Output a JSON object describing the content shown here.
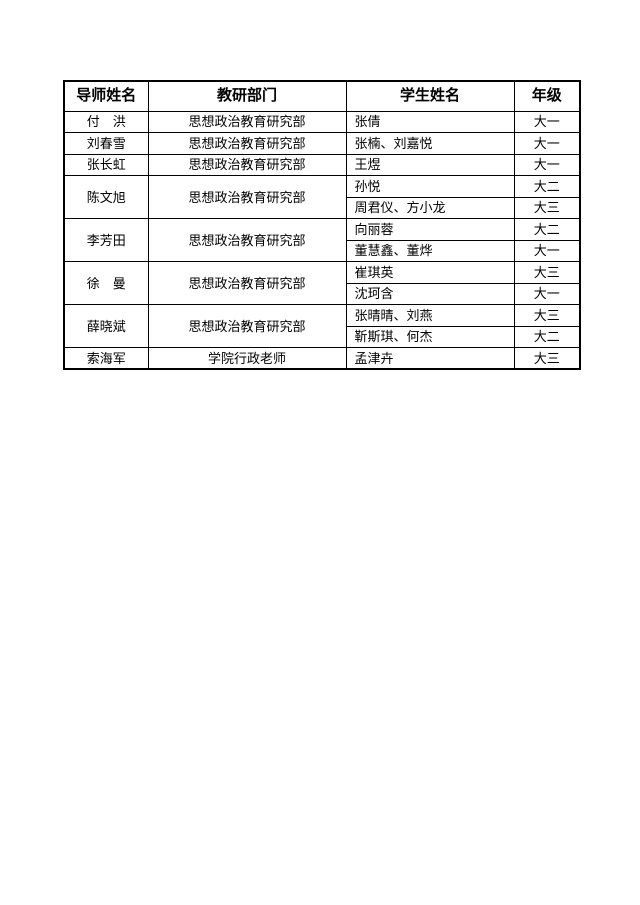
{
  "page": {
    "background": "#ffffff",
    "text_color": "#000000",
    "border_color": "#000000"
  },
  "table": {
    "headers": [
      "导师姓名",
      "教研部门",
      "学生姓名",
      "年级"
    ],
    "groups": [
      {
        "tutor": "付　洪",
        "department": "思想政治教育研究部",
        "students": [
          {
            "names": "张倩",
            "grade": "大一"
          }
        ]
      },
      {
        "tutor": "刘春雪",
        "department": "思想政治教育研究部",
        "students": [
          {
            "names": "张楠、刘嘉悦",
            "grade": "大一"
          }
        ]
      },
      {
        "tutor": "张长虹",
        "department": "思想政治教育研究部",
        "students": [
          {
            "names": "王煜",
            "grade": "大一"
          }
        ]
      },
      {
        "tutor": "陈文旭",
        "department": "思想政治教育研究部",
        "students": [
          {
            "names": "孙悦",
            "grade": "大二"
          },
          {
            "names": "周君仪、方小龙",
            "grade": "大三"
          }
        ]
      },
      {
        "tutor": "李芳田",
        "department": "思想政治教育研究部",
        "students": [
          {
            "names": "向丽蓉",
            "grade": "大二"
          },
          {
            "names": "董慧鑫、董烨",
            "grade": "大一"
          }
        ]
      },
      {
        "tutor": "徐　曼",
        "department": "思想政治教育研究部",
        "students": [
          {
            "names": "崔琪英",
            "grade": "大三"
          },
          {
            "names": "沈珂含",
            "grade": "大一"
          }
        ]
      },
      {
        "tutor": "薛晓斌",
        "department": "思想政治教育研究部",
        "students": [
          {
            "names": "张晴晴、刘燕",
            "grade": "大三"
          },
          {
            "names": "靳斯琪、何杰",
            "grade": "大二"
          }
        ]
      },
      {
        "tutor": "索海军",
        "department": "学院行政老师",
        "students": [
          {
            "names": "孟津卉",
            "grade": "大三"
          }
        ]
      }
    ]
  }
}
